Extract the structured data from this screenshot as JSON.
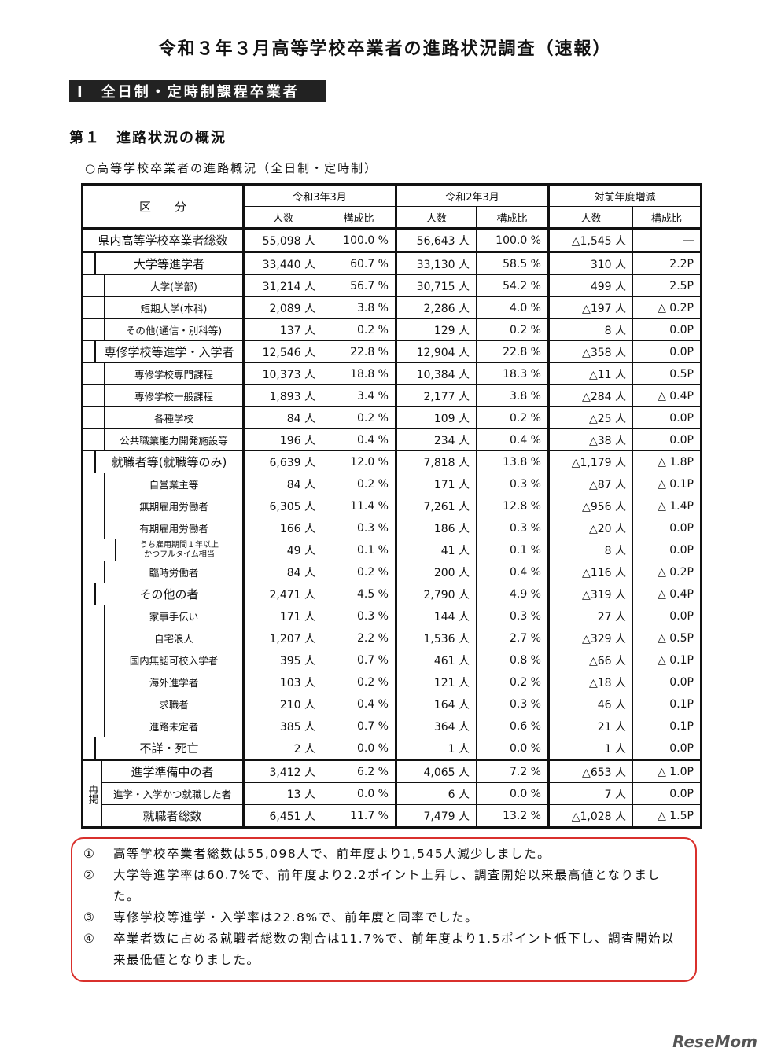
{
  "title": "令和３年３月高等学校卒業者の進路状況調査（速報）",
  "section": "Ⅰ　全日制・定時制課程卒業者",
  "subsection": "第１　進路状況の概況",
  "caption": "○高等学校卒業者の進路概況（全日制・定時制）",
  "table": {
    "header_category": "区　　分",
    "periods": [
      "令和3年3月",
      "令和2年3月",
      "対前年度増減"
    ],
    "sub_headers": [
      "人数",
      "構成比",
      "人数",
      "構成比",
      "人数",
      "構成比"
    ],
    "rows": [
      {
        "level": 0,
        "label": "県内高等学校卒業者総数",
        "v": [
          "55,098 人",
          "100.0 %",
          "56,643 人",
          "100.0 %",
          "△1,545 人",
          "―"
        ]
      },
      {
        "level": 1,
        "label": "大学等進学者",
        "v": [
          "33,440 人",
          "60.7 %",
          "33,130 人",
          "58.5 %",
          "310 人",
          "2.2P"
        ]
      },
      {
        "level": 2,
        "label": "大学(学部)",
        "v": [
          "31,214 人",
          "56.7 %",
          "30,715 人",
          "54.2 %",
          "499 人",
          "2.5P"
        ]
      },
      {
        "level": 2,
        "label": "短期大学(本科)",
        "v": [
          "2,089 人",
          "3.8 %",
          "2,286 人",
          "4.0 %",
          "△197 人",
          "△ 0.2P"
        ]
      },
      {
        "level": 2,
        "label": "その他(通信・別科等)",
        "v": [
          "137 人",
          "0.2 %",
          "129 人",
          "0.2 %",
          "8 人",
          "0.0P"
        ]
      },
      {
        "level": 1,
        "label": "専修学校等進学・入学者",
        "v": [
          "12,546 人",
          "22.8 %",
          "12,904 人",
          "22.8 %",
          "△358 人",
          "0.0P"
        ]
      },
      {
        "level": 2,
        "label": "専修学校専門課程",
        "v": [
          "10,373 人",
          "18.8 %",
          "10,384 人",
          "18.3 %",
          "△11 人",
          "0.5P"
        ]
      },
      {
        "level": 2,
        "label": "専修学校一般課程",
        "v": [
          "1,893 人",
          "3.4 %",
          "2,177 人",
          "3.8 %",
          "△284 人",
          "△ 0.4P"
        ]
      },
      {
        "level": 2,
        "label": "各種学校",
        "v": [
          "84 人",
          "0.2 %",
          "109 人",
          "0.2 %",
          "△25 人",
          "0.0P"
        ]
      },
      {
        "level": 2,
        "label": "公共職業能力開発施設等",
        "v": [
          "196 人",
          "0.4 %",
          "234 人",
          "0.4 %",
          "△38 人",
          "0.0P"
        ]
      },
      {
        "level": 1,
        "label": "就職者等(就職等のみ)",
        "v": [
          "6,639 人",
          "12.0 %",
          "7,818 人",
          "13.8 %",
          "△1,179 人",
          "△ 1.8P"
        ]
      },
      {
        "level": 2,
        "label": "自営業主等",
        "v": [
          "84 人",
          "0.2 %",
          "171 人",
          "0.3 %",
          "△87 人",
          "△ 0.1P"
        ]
      },
      {
        "level": 2,
        "label": "無期雇用労働者",
        "v": [
          "6,305 人",
          "11.4 %",
          "7,261 人",
          "12.8 %",
          "△956 人",
          "△ 1.4P"
        ]
      },
      {
        "level": 2,
        "label": "有期雇用労働者",
        "v": [
          "166 人",
          "0.3 %",
          "186 人",
          "0.3 %",
          "△20 人",
          "0.0P"
        ]
      },
      {
        "level": 3,
        "label": "うち雇用期間１年以上",
        "label2": "かつフルタイム相当",
        "v": [
          "49 人",
          "0.1 %",
          "41 人",
          "0.1 %",
          "8 人",
          "0.0P"
        ]
      },
      {
        "level": 2,
        "label": "臨時労働者",
        "v": [
          "84 人",
          "0.2 %",
          "200 人",
          "0.4 %",
          "△116 人",
          "△ 0.2P"
        ]
      },
      {
        "level": 1,
        "label": "その他の者",
        "v": [
          "2,471 人",
          "4.5 %",
          "2,790 人",
          "4.9 %",
          "△319 人",
          "△ 0.4P"
        ]
      },
      {
        "level": 2,
        "label": "家事手伝い",
        "v": [
          "171 人",
          "0.3 %",
          "144 人",
          "0.3 %",
          "27 人",
          "0.0P"
        ]
      },
      {
        "level": 2,
        "label": "自宅浪人",
        "v": [
          "1,207 人",
          "2.2 %",
          "1,536 人",
          "2.7 %",
          "△329 人",
          "△ 0.5P"
        ]
      },
      {
        "level": 2,
        "label": "国内無認可校入学者",
        "v": [
          "395 人",
          "0.7 %",
          "461 人",
          "0.8 %",
          "△66 人",
          "△ 0.1P"
        ]
      },
      {
        "level": 2,
        "label": "海外進学者",
        "v": [
          "103 人",
          "0.2 %",
          "121 人",
          "0.2 %",
          "△18 人",
          "0.0P"
        ]
      },
      {
        "level": 2,
        "label": "求職者",
        "v": [
          "210 人",
          "0.4 %",
          "164 人",
          "0.3 %",
          "46 人",
          "0.1P"
        ]
      },
      {
        "level": 2,
        "label": "進路未定者",
        "v": [
          "385 人",
          "0.7 %",
          "364 人",
          "0.6 %",
          "21 人",
          "0.1P"
        ]
      },
      {
        "level": 1,
        "label": "不詳・死亡",
        "v": [
          "2 人",
          "0.0 %",
          "1 人",
          "0.0 %",
          "1 人",
          "0.0P"
        ]
      }
    ],
    "repost_label": "再掲",
    "repost_rows": [
      {
        "label": "進学準備中の者",
        "v": [
          "3,412 人",
          "6.2 %",
          "4,065 人",
          "7.2 %",
          "△653 人",
          "△ 1.0P"
        ]
      },
      {
        "label": "進学・入学かつ就職した者",
        "v": [
          "13 人",
          "0.0 %",
          "6 人",
          "0.0 %",
          "7 人",
          "0.0P"
        ]
      },
      {
        "label": "就職者総数",
        "v": [
          "6,451 人",
          "11.7 %",
          "7,479 人",
          "13.2 %",
          "△1,028 人",
          "△ 1.5P"
        ]
      }
    ]
  },
  "notes": [
    {
      "num": "①",
      "text": "高等学校卒業者総数は55,098人で、前年度より1,545人減少しました。"
    },
    {
      "num": "②",
      "text": "大学等進学率は60.7%で、前年度より2.2ポイント上昇し、調査開始以来最高値となりました。"
    },
    {
      "num": "③",
      "text": "専修学校等進学・入学率は22.8%で、前年度と同率でした。"
    },
    {
      "num": "④",
      "text": "卒業者数に占める就職者総数の割合は11.7%で、前年度より1.5ポイント低下し、調査開始以来最低値となりました。"
    }
  ],
  "logo": "ReseMom",
  "colors": {
    "note_border": "#d9302c",
    "section_bg": "#222222"
  }
}
